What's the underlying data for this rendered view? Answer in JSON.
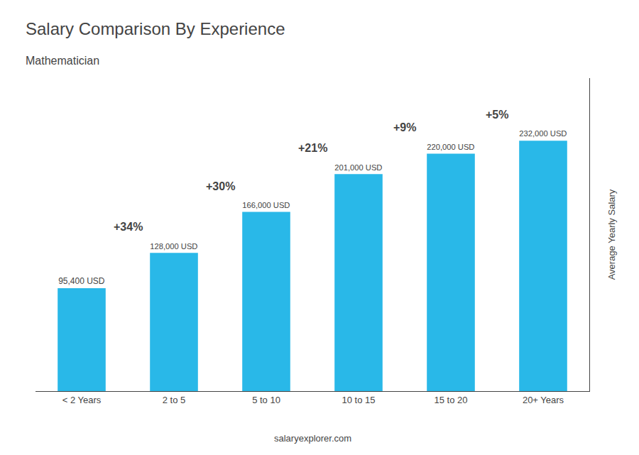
{
  "chart_data": {
    "type": "bar",
    "title": "Salary Comparison By Experience",
    "subtitle": "Mathematician",
    "ylabel": "Average Yearly Salary",
    "categories": [
      "< 2 Years",
      "2 to 5",
      "5 to 10",
      "10 to 15",
      "15 to 20",
      "20+ Years"
    ],
    "values": [
      95400,
      128000,
      166000,
      201000,
      220000,
      232000
    ],
    "value_labels": [
      "95,400 USD",
      "128,000 USD",
      "166,000 USD",
      "201,000 USD",
      "220,000 USD",
      "232,000 USD"
    ],
    "data_labels": true,
    "color": "#29B8E8",
    "ylim": [
      0,
      290000
    ],
    "tick_labels": "x",
    "grid": false,
    "annotations": [
      "+34%",
      "+30%",
      "+21%",
      "+9%",
      "+5%"
    ],
    "watermark": "salaryexplorer.com"
  }
}
